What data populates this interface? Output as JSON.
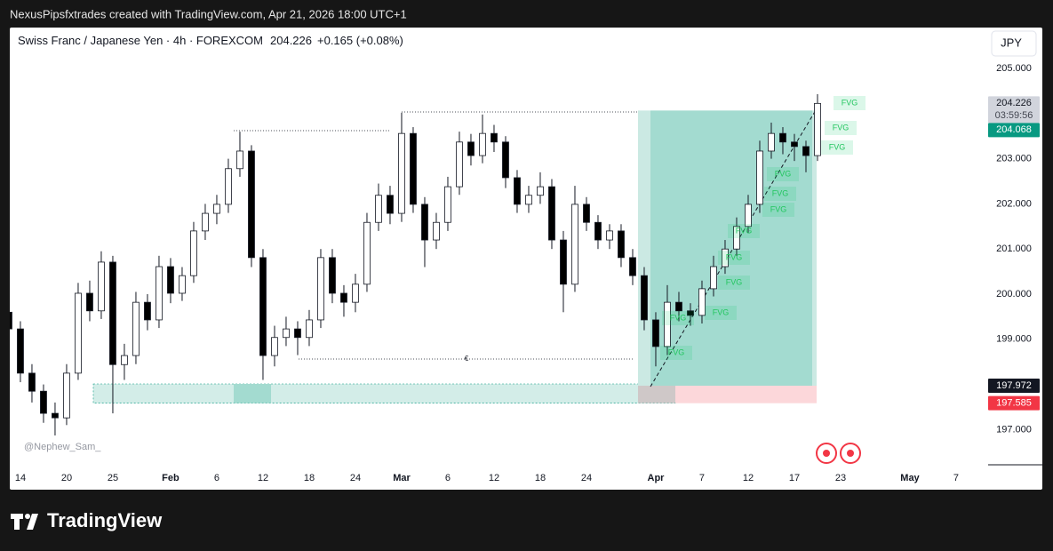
{
  "header": "NexusPipsfxtrades created with TradingView.com, Apr 21, 2026 18:00 UTC+1",
  "footer": "TradingView",
  "chart_data": {
    "type": "candlestick",
    "title": "Swiss Franc / Japanese Yen · 4h · FOREXCOM",
    "last_price": "204.226",
    "change": "+0.165 (+0.08%)",
    "currency": "JPY",
    "watermark": "@Nephew_Sam_",
    "level_label": "€",
    "annotations": [
      "FVG",
      "FVG",
      "FVG",
      "FVG",
      "FVG",
      "FVG",
      "FVG",
      "FVG",
      "FVG",
      "FVG",
      "FVG",
      "FVG"
    ],
    "up_color": "#ffffff",
    "down_color": "#000000",
    "x": [
      -1,
      0,
      1,
      2,
      3,
      4,
      5,
      6,
      7,
      8,
      9,
      10,
      11,
      12,
      13,
      14,
      15,
      16,
      17,
      18,
      19,
      20,
      21,
      22,
      23,
      24,
      25,
      26,
      27,
      28,
      29,
      30,
      31,
      32,
      33,
      34,
      35,
      36,
      37,
      38,
      39,
      40,
      41,
      42,
      43,
      44,
      45,
      46,
      47,
      48,
      49,
      50,
      51,
      52,
      53,
      54,
      55,
      56,
      57,
      58,
      59,
      60,
      61,
      62,
      63,
      64,
      65,
      66,
      67,
      68,
      69
    ],
    "open": [
      199.6,
      199.23,
      198.25,
      197.85,
      197.36,
      197.26,
      198.25,
      200.02,
      199.63,
      200.71,
      198.44,
      198.64,
      199.82,
      199.43,
      200.61,
      200.02,
      200.41,
      201.4,
      201.79,
      201.99,
      202.78,
      203.17,
      200.81,
      198.64,
      199.04,
      199.23,
      199.04,
      199.43,
      200.81,
      200.02,
      199.82,
      200.22,
      201.59,
      202.19,
      201.79,
      203.56,
      201.99,
      201.2,
      201.59,
      202.38,
      203.37,
      203.07,
      203.56,
      203.37,
      202.58,
      201.99,
      202.19,
      202.38,
      201.2,
      200.22,
      201.99,
      201.59,
      201.2,
      201.4,
      200.81,
      200.41,
      199.43,
      198.84,
      199.82,
      199.63,
      199.53,
      200.12,
      200.61,
      201.0,
      201.5,
      201.99,
      203.17,
      203.56,
      203.37,
      203.27,
      203.07
    ],
    "high": [
      199.8,
      199.4,
      198.45,
      198.0,
      197.6,
      198.45,
      200.25,
      200.3,
      200.95,
      200.85,
      198.9,
      200.05,
      200.0,
      200.85,
      200.8,
      200.6,
      201.6,
      202.0,
      202.2,
      203.0,
      203.6,
      203.3,
      201.0,
      199.3,
      199.5,
      199.4,
      199.65,
      201.0,
      201.0,
      200.2,
      200.45,
      201.8,
      202.45,
      202.4,
      204.02,
      203.7,
      202.15,
      201.8,
      202.6,
      203.6,
      203.55,
      203.98,
      203.75,
      203.5,
      202.75,
      202.4,
      202.7,
      202.55,
      201.4,
      202.4,
      202.15,
      201.75,
      201.55,
      201.55,
      201.0,
      200.6,
      199.6,
      200.2,
      200.05,
      199.8,
      200.3,
      200.85,
      201.2,
      201.7,
      202.2,
      203.4,
      203.8,
      203.7,
      203.55,
      203.4,
      204.43
    ],
    "low": [
      199.05,
      198.05,
      197.6,
      197.15,
      196.87,
      197.1,
      198.1,
      199.4,
      199.45,
      197.36,
      198.1,
      198.45,
      199.2,
      199.25,
      199.8,
      199.85,
      200.25,
      201.2,
      201.55,
      201.8,
      202.6,
      200.6,
      198.1,
      198.4,
      198.85,
      198.65,
      198.85,
      199.25,
      199.8,
      199.5,
      199.6,
      200.05,
      201.4,
      201.55,
      201.6,
      201.8,
      200.6,
      201.0,
      201.4,
      202.2,
      202.85,
      202.9,
      203.15,
      202.35,
      201.8,
      201.8,
      202.0,
      201.0,
      199.6,
      200.05,
      201.4,
      201.0,
      201.0,
      200.6,
      200.2,
      199.2,
      198.4,
      198.65,
      199.4,
      199.3,
      199.35,
      199.95,
      200.45,
      200.85,
      201.35,
      201.8,
      203.0,
      203.1,
      202.95,
      202.7,
      202.95
    ],
    "close": [
      199.23,
      198.25,
      197.85,
      197.36,
      197.26,
      198.25,
      200.02,
      199.63,
      200.71,
      198.44,
      198.64,
      199.82,
      199.43,
      200.61,
      200.02,
      200.41,
      201.4,
      201.79,
      201.99,
      202.78,
      203.17,
      200.81,
      198.64,
      199.04,
      199.23,
      199.04,
      199.43,
      200.81,
      200.02,
      199.82,
      200.22,
      201.59,
      202.19,
      201.79,
      203.56,
      201.99,
      201.2,
      201.59,
      202.38,
      203.37,
      203.07,
      203.56,
      203.37,
      202.58,
      201.99,
      202.19,
      202.38,
      201.2,
      200.22,
      201.99,
      201.59,
      201.2,
      201.4,
      200.81,
      200.41,
      199.43,
      198.84,
      199.82,
      199.63,
      199.53,
      200.12,
      200.61,
      201.0,
      201.5,
      201.99,
      203.17,
      203.56,
      203.37,
      203.27,
      203.07,
      204.226
    ],
    "xlim": [
      -0.92,
      83.77
    ],
    "xticks": [
      {
        "value": 0,
        "label": "14"
      },
      {
        "value": 4,
        "label": "20"
      },
      {
        "value": 8,
        "label": "25"
      },
      {
        "value": 13,
        "label": "Feb"
      },
      {
        "value": 17,
        "label": "6"
      },
      {
        "value": 21,
        "label": "12"
      },
      {
        "value": 25,
        "label": "18"
      },
      {
        "value": 29,
        "label": "24"
      },
      {
        "value": 33,
        "label": "Mar"
      },
      {
        "value": 37,
        "label": "6"
      },
      {
        "value": 41,
        "label": "12"
      },
      {
        "value": 45,
        "label": "18"
      },
      {
        "value": 49,
        "label": "24"
      },
      {
        "value": 55,
        "label": "Apr"
      },
      {
        "value": 59,
        "label": "7"
      },
      {
        "value": 63,
        "label": "12"
      },
      {
        "value": 67,
        "label": "17"
      },
      {
        "value": 71,
        "label": "23"
      },
      {
        "value": 77,
        "label": "May"
      },
      {
        "value": 81,
        "label": "7"
      }
    ],
    "ylim": [
      196.22,
      205.906
    ],
    "yticks": [
      {
        "value": 197,
        "label": "197.000"
      },
      {
        "value": 198,
        "label": "198.000"
      },
      {
        "value": 199,
        "label": "199.000"
      },
      {
        "value": 200,
        "label": "200.000"
      },
      {
        "value": 201,
        "label": "201.000"
      },
      {
        "value": 202,
        "label": "202.000"
      },
      {
        "value": 203,
        "label": "203.000"
      },
      {
        "value": 204,
        "label": "204.000"
      },
      {
        "value": 205,
        "label": "205.000"
      }
    ],
    "countdown": "03:59:56",
    "price_tags": [
      {
        "value": 204.226,
        "label": "204.226",
        "color": "#d1d4dc"
      },
      {
        "value": 204.068,
        "label": "204.068",
        "color": "#089981"
      },
      {
        "value": 197.972,
        "label": "197.972",
        "color": "#131722"
      },
      {
        "value": 197.585,
        "label": "197.585",
        "color": "#f23645"
      }
    ]
  }
}
